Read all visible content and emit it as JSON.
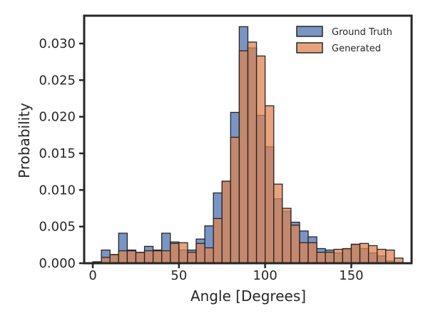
{
  "chart_data": {
    "type": "bar",
    "title": "",
    "xlabel": "Angle [Degrees]",
    "ylabel": "Probability",
    "xlim": [
      -5,
      185
    ],
    "ylim": [
      0,
      0.0338
    ],
    "bin_width": 5,
    "xticks": [
      0,
      50,
      100,
      150
    ],
    "yticks": [
      0.0,
      0.005,
      0.01,
      0.015,
      0.02,
      0.025,
      0.03
    ],
    "ytick_labels": [
      "0.000",
      "0.005",
      "0.010",
      "0.015",
      "0.020",
      "0.025",
      "0.030"
    ],
    "grid": false,
    "legend_position": "top-right",
    "series": [
      {
        "name": "Ground Truth",
        "color": "#4c72b0",
        "bins": [
          [
            0,
            5,
            0.0002
          ],
          [
            5,
            10,
            0.0018
          ],
          [
            10,
            15,
            0.0011
          ],
          [
            15,
            20,
            0.0041
          ],
          [
            20,
            25,
            0.0018
          ],
          [
            25,
            30,
            0.0014
          ],
          [
            30,
            35,
            0.0023
          ],
          [
            35,
            40,
            0.0018
          ],
          [
            40,
            45,
            0.0041
          ],
          [
            45,
            50,
            0.0029
          ],
          [
            50,
            55,
            0.0018
          ],
          [
            55,
            60,
            0.0018
          ],
          [
            60,
            65,
            0.0033
          ],
          [
            65,
            70,
            0.0051
          ],
          [
            70,
            75,
            0.0096
          ],
          [
            75,
            80,
            0.0112
          ],
          [
            80,
            85,
            0.0206
          ],
          [
            85,
            90,
            0.0323
          ],
          [
            90,
            95,
            0.0294
          ],
          [
            95,
            100,
            0.0202
          ],
          [
            100,
            105,
            0.0159
          ],
          [
            105,
            110,
            0.0088
          ],
          [
            110,
            115,
            0.0071
          ],
          [
            115,
            120,
            0.0056
          ],
          [
            120,
            125,
            0.0044
          ],
          [
            125,
            130,
            0.0036
          ],
          [
            130,
            135,
            0.002
          ],
          [
            135,
            140,
            0.0018
          ],
          [
            140,
            145,
            0.0014
          ],
          [
            145,
            150,
            0.0019
          ],
          [
            150,
            155,
            0.0025
          ],
          [
            155,
            160,
            0.002
          ],
          [
            160,
            165,
            0.0014
          ],
          [
            165,
            170,
            0.001
          ],
          [
            170,
            175,
            0.0003
          ],
          [
            175,
            180,
            0.0001
          ]
        ]
      },
      {
        "name": "Generated",
        "color": "#dd8452",
        "bins": [
          [
            5,
            10,
            0.0008
          ],
          [
            10,
            15,
            0.0012
          ],
          [
            15,
            20,
            0.0017
          ],
          [
            20,
            25,
            0.0017
          ],
          [
            25,
            30,
            0.0015
          ],
          [
            30,
            35,
            0.0017
          ],
          [
            35,
            40,
            0.0017
          ],
          [
            40,
            45,
            0.0017
          ],
          [
            45,
            50,
            0.0027
          ],
          [
            50,
            55,
            0.0028
          ],
          [
            55,
            60,
            0.0015
          ],
          [
            60,
            65,
            0.0027
          ],
          [
            65,
            70,
            0.0021
          ],
          [
            70,
            75,
            0.0061
          ],
          [
            75,
            80,
            0.0112
          ],
          [
            80,
            85,
            0.0172
          ],
          [
            85,
            90,
            0.029
          ],
          [
            90,
            95,
            0.0302
          ],
          [
            95,
            100,
            0.0283
          ],
          [
            100,
            105,
            0.0215
          ],
          [
            105,
            110,
            0.0108
          ],
          [
            110,
            115,
            0.0075
          ],
          [
            115,
            120,
            0.0052
          ],
          [
            120,
            125,
            0.0028
          ],
          [
            125,
            130,
            0.0028
          ],
          [
            130,
            135,
            0.0015
          ],
          [
            135,
            140,
            0.0015
          ],
          [
            140,
            145,
            0.0019
          ],
          [
            145,
            150,
            0.002
          ],
          [
            150,
            155,
            0.0026
          ],
          [
            155,
            160,
            0.0027
          ],
          [
            160,
            165,
            0.0024
          ],
          [
            165,
            170,
            0.0019
          ],
          [
            170,
            175,
            0.0018
          ],
          [
            175,
            180,
            0.0007
          ]
        ]
      }
    ]
  }
}
